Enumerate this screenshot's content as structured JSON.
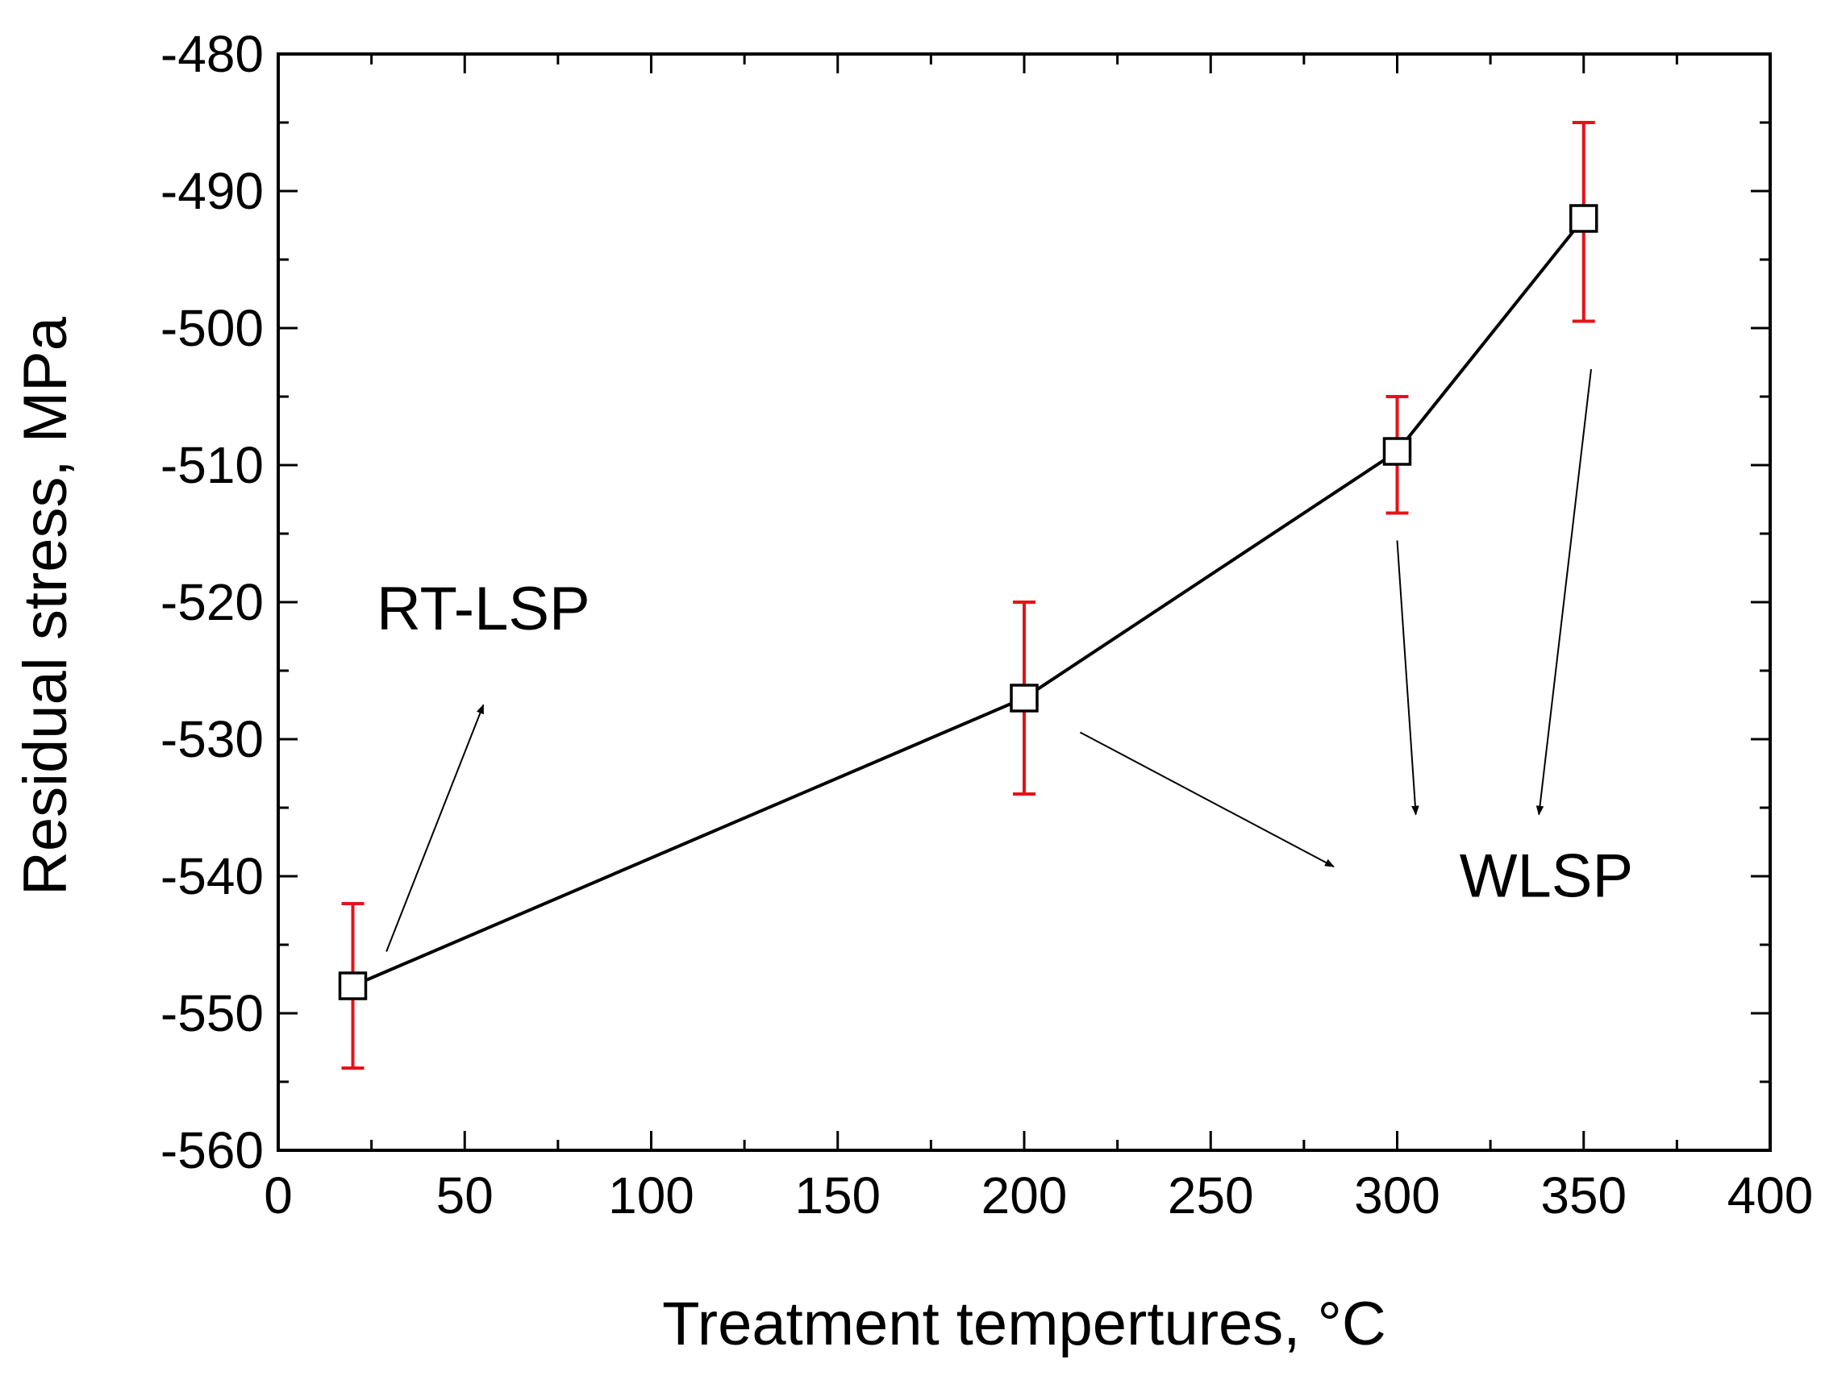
{
  "chart_data": {
    "type": "line",
    "title": "",
    "xlabel": "Treatment tempertures, °C",
    "ylabel": "Residual stress, MPa",
    "xlim": [
      0,
      400
    ],
    "ylim": [
      -560,
      -480
    ],
    "x_ticks": [
      0,
      50,
      100,
      150,
      200,
      250,
      300,
      350,
      400
    ],
    "x_tick_labels": [
      "0",
      "50",
      "100",
      "150",
      "200",
      "250",
      "300",
      "350",
      "400"
    ],
    "y_ticks": [
      -480,
      -490,
      -500,
      -510,
      -520,
      -530,
      -540,
      -550,
      -560
    ],
    "y_tick_labels": [
      "-480",
      "-490",
      "-500",
      "-510",
      "-520",
      "-530",
      "-540",
      "-550",
      "-560"
    ],
    "series": [
      {
        "name": "Residual stress",
        "x": [
          20,
          200,
          300,
          350
        ],
        "y": [
          -548,
          -527,
          -509,
          -492
        ],
        "error_upper": [
          -542,
          -520,
          -505,
          -485
        ],
        "error_lower": [
          -554,
          -534,
          -513.5,
          -499.5
        ],
        "marker": "open-square",
        "line_color": "#000000",
        "error_color": "#e8101a"
      }
    ],
    "annotations": [
      {
        "text": "RT-LSP",
        "text_at": [
          55,
          -522
        ],
        "arrows": [
          {
            "from": [
              29,
              -545.5
            ],
            "to": [
              55,
              -527.5
            ]
          }
        ]
      },
      {
        "text": "WLSP",
        "text_at": [
          340,
          -541.5
        ],
        "arrows": [
          {
            "from": [
              215,
              -529.5
            ],
            "to": [
              283,
              -539.3
            ]
          },
          {
            "from": [
              300,
              -515.5
            ],
            "to": [
              305,
              -535.5
            ]
          },
          {
            "from": [
              352,
              -503
            ],
            "to": [
              338,
              -535.5
            ]
          }
        ]
      }
    ],
    "legend": "none",
    "grid": false
  }
}
